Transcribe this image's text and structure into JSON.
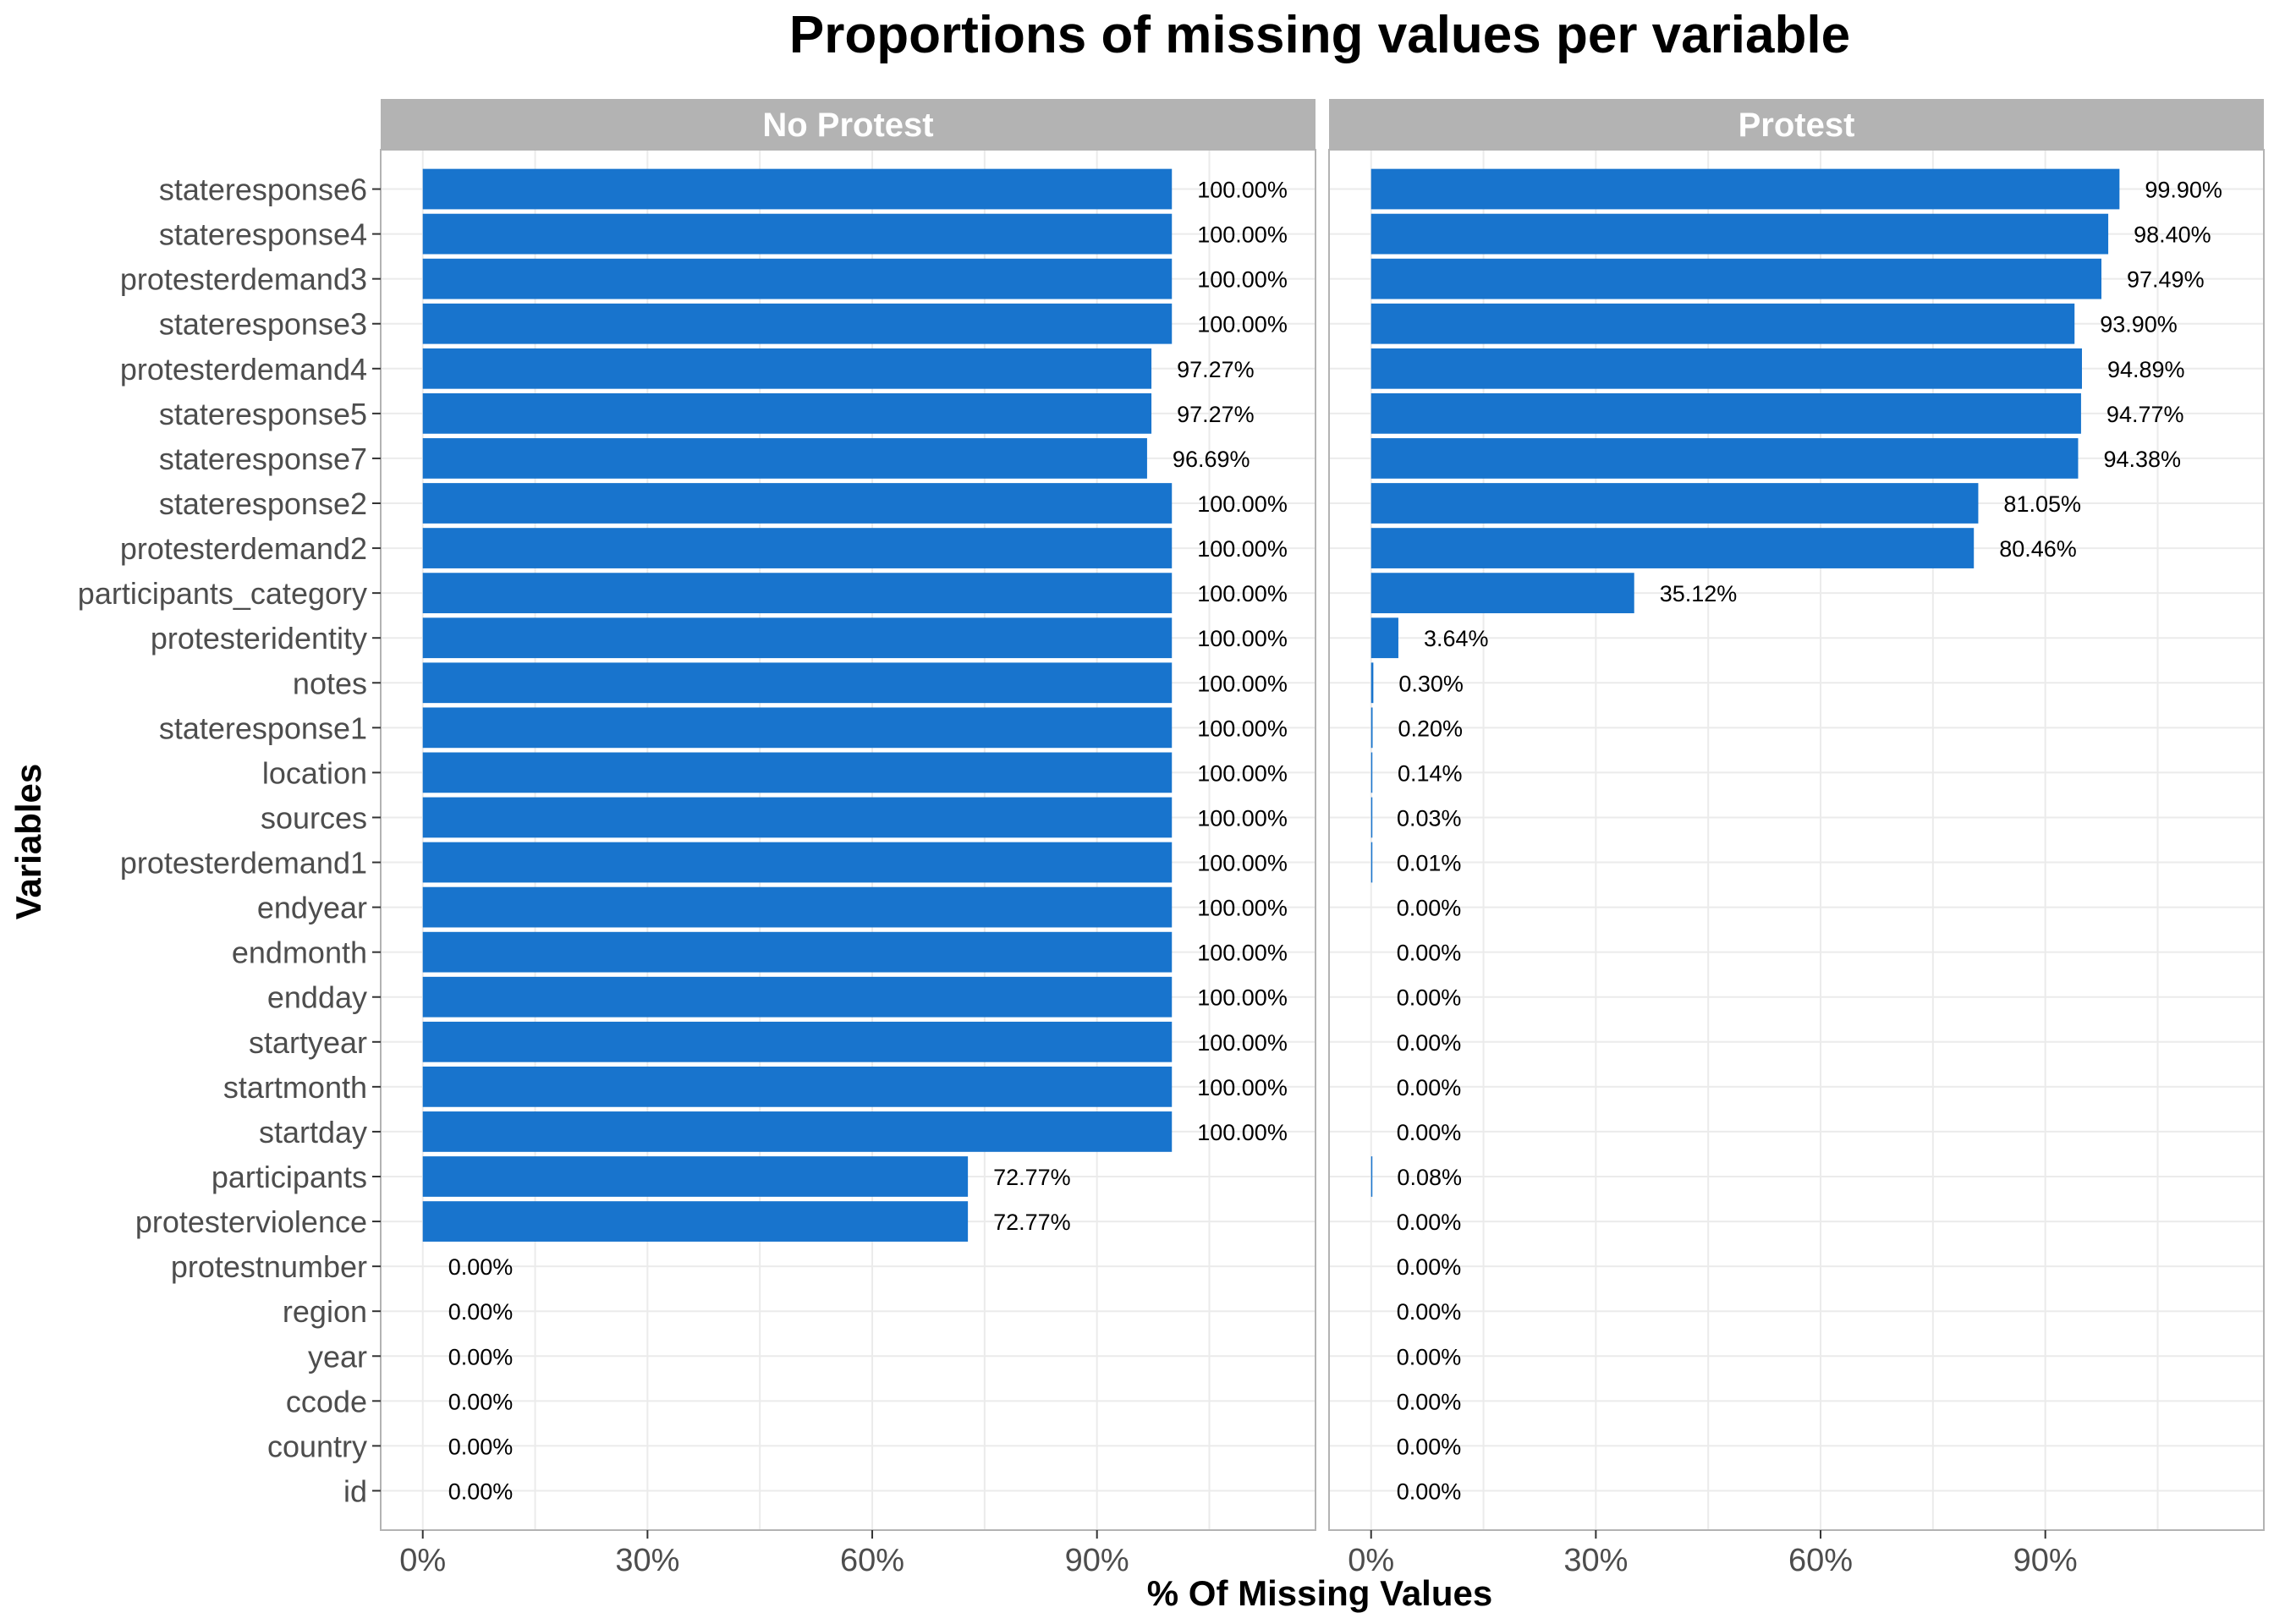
{
  "chart_data": {
    "type": "bar",
    "orientation": "horizontal",
    "title": "Proportions of missing values per variable",
    "xlabel": "% Of Missing Values",
    "ylabel": "Variables",
    "xlim": [
      0,
      1.15
    ],
    "x_ticks": [
      0,
      0.3,
      0.6,
      0.9
    ],
    "x_tick_labels": [
      "0%",
      "30%",
      "60%",
      "90%"
    ],
    "grid": true,
    "bar_color": "#1874CD",
    "strip_color": "#B3B3B3",
    "categories": [
      "stateresponse6",
      "stateresponse4",
      "protesterdemand3",
      "stateresponse3",
      "protesterdemand4",
      "stateresponse5",
      "stateresponse7",
      "stateresponse2",
      "protesterdemand2",
      "participants_category",
      "protesteridentity",
      "notes",
      "stateresponse1",
      "location",
      "sources",
      "protesterdemand1",
      "endyear",
      "endmonth",
      "endday",
      "startyear",
      "startmonth",
      "startday",
      "participants",
      "protesterviolence",
      "protestnumber",
      "region",
      "year",
      "ccode",
      "country",
      "id"
    ],
    "panels": [
      {
        "name": "No Protest",
        "values": [
          1.0,
          1.0,
          1.0,
          1.0,
          0.9727,
          0.9727,
          0.9669,
          1.0,
          1.0,
          1.0,
          1.0,
          1.0,
          1.0,
          1.0,
          1.0,
          1.0,
          1.0,
          1.0,
          1.0,
          1.0,
          1.0,
          1.0,
          0.7277,
          0.7277,
          0,
          0,
          0,
          0,
          0,
          0
        ],
        "labels": [
          "100.00%",
          "100.00%",
          "100.00%",
          "100.00%",
          "97.27%",
          "97.27%",
          "96.69%",
          "100.00%",
          "100.00%",
          "100.00%",
          "100.00%",
          "100.00%",
          "100.00%",
          "100.00%",
          "100.00%",
          "100.00%",
          "100.00%",
          "100.00%",
          "100.00%",
          "100.00%",
          "100.00%",
          "100.00%",
          "72.77%",
          "72.77%",
          "0.00%",
          "0.00%",
          "0.00%",
          "0.00%",
          "0.00%",
          "0.00%"
        ]
      },
      {
        "name": "Protest",
        "values": [
          0.999,
          0.984,
          0.9749,
          0.939,
          0.9489,
          0.9477,
          0.9438,
          0.8105,
          0.8046,
          0.3512,
          0.0364,
          0.003,
          0.002,
          0.0014,
          0.0003,
          0.0001,
          0,
          0,
          0,
          0,
          0,
          0,
          0.0008,
          0,
          0,
          0,
          0,
          0,
          0,
          0
        ],
        "labels": [
          "99.90%",
          "98.40%",
          "97.49%",
          "93.90%",
          "94.89%",
          "94.77%",
          "94.38%",
          "81.05%",
          "80.46%",
          "35.12%",
          "3.64%",
          "0.30%",
          "0.20%",
          "0.14%",
          "0.03%",
          "0.01%",
          "0.00%",
          "0.00%",
          "0.00%",
          "0.00%",
          "0.00%",
          "0.00%",
          "0.08%",
          "0.00%",
          "0.00%",
          "0.00%",
          "0.00%",
          "0.00%",
          "0.00%",
          "0.00%"
        ]
      }
    ]
  }
}
